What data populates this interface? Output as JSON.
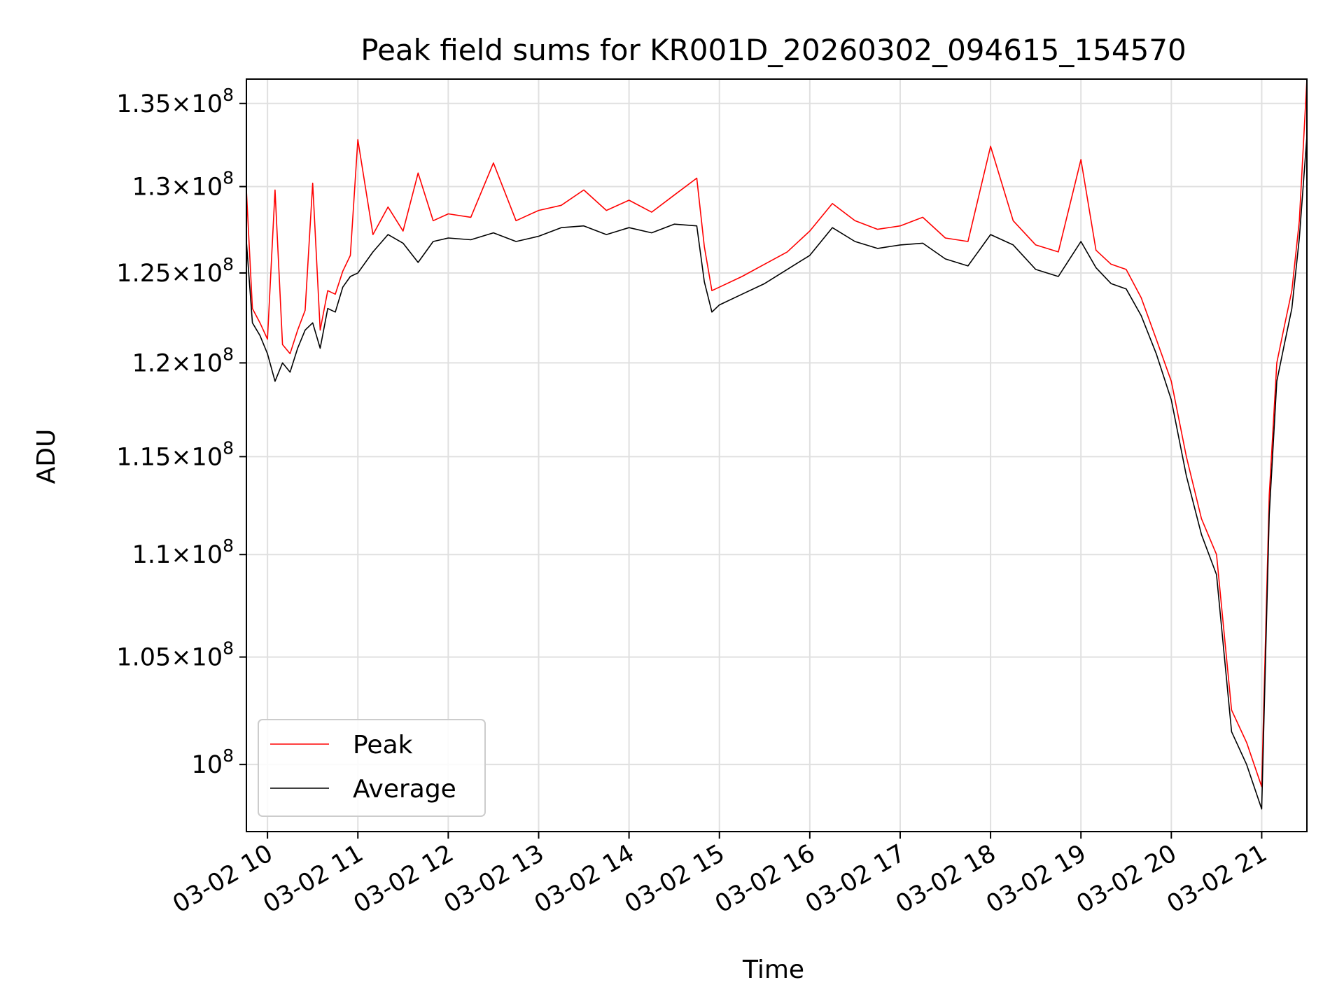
{
  "chart_data": {
    "type": "line",
    "title": "Peak field sums for KR001D_20260302_094615_154570",
    "xlabel": "Time",
    "ylabel": "ADU",
    "yscale": "log",
    "grid": true,
    "legend_placement": "lower-left",
    "xlim": [
      "2026-03-02 09:46",
      "2026-03-02 21:30"
    ],
    "ylim": [
      97000000,
      136500000
    ],
    "x_ticks": [
      "03-02 10",
      "03-02 11",
      "03-02 12",
      "03-02 13",
      "03-02 14",
      "03-02 15",
      "03-02 16",
      "03-02 17",
      "03-02 18",
      "03-02 19",
      "03-02 20",
      "03-02 21"
    ],
    "y_ticks": [
      {
        "value": 100000000,
        "mantissa": "",
        "exp": "8"
      },
      {
        "value": 105000000,
        "mantissa": "1.05",
        "exp": "8"
      },
      {
        "value": 110000000,
        "mantissa": "1.1",
        "exp": "8"
      },
      {
        "value": 115000000,
        "mantissa": "1.15",
        "exp": "8"
      },
      {
        "value": 120000000,
        "mantissa": "1.2",
        "exp": "8"
      },
      {
        "value": 125000000,
        "mantissa": "1.25",
        "exp": "8"
      },
      {
        "value": 130000000,
        "mantissa": "1.3",
        "exp": "8"
      },
      {
        "value": 135000000,
        "mantissa": "1.35",
        "exp": "8"
      }
    ],
    "series": [
      {
        "name": "Peak",
        "color": "#ff0000"
      },
      {
        "name": "Average",
        "color": "#000000"
      }
    ],
    "x": [
      "09:46",
      "09:50",
      "09:55",
      "10:00",
      "10:05",
      "10:10",
      "10:15",
      "10:20",
      "10:25",
      "10:30",
      "10:35",
      "10:40",
      "10:45",
      "10:50",
      "10:55",
      "11:00",
      "11:10",
      "11:20",
      "11:30",
      "11:40",
      "11:50",
      "12:00",
      "12:15",
      "12:30",
      "12:45",
      "13:00",
      "13:15",
      "13:30",
      "13:45",
      "14:00",
      "14:15",
      "14:30",
      "14:45",
      "14:50",
      "14:55",
      "15:00",
      "15:15",
      "15:30",
      "15:45",
      "16:00",
      "16:15",
      "16:30",
      "16:45",
      "17:00",
      "17:15",
      "17:30",
      "17:45",
      "18:00",
      "18:15",
      "18:30",
      "18:45",
      "19:00",
      "19:10",
      "19:20",
      "19:30",
      "19:40",
      "19:50",
      "20:00",
      "20:10",
      "20:20",
      "20:30",
      "20:40",
      "20:50",
      "21:00",
      "21:05",
      "21:10",
      "21:15",
      "21:20",
      "21:25",
      "21:30"
    ],
    "average": [
      126800000,
      122200000,
      121500000,
      120500000,
      119000000,
      120000000,
      119500000,
      120800000,
      121800000,
      122200000,
      120800000,
      123000000,
      122800000,
      124200000,
      124800000,
      125000000,
      126200000,
      127200000,
      126700000,
      125600000,
      126800000,
      127000000,
      126900000,
      127300000,
      126800000,
      127100000,
      127600000,
      127700000,
      127200000,
      127600000,
      127300000,
      127800000,
      127700000,
      124500000,
      122800000,
      123200000,
      123800000,
      124400000,
      125200000,
      126000000,
      127600000,
      126800000,
      126400000,
      126600000,
      126700000,
      125800000,
      125400000,
      127200000,
      126600000,
      125200000,
      124800000,
      126800000,
      125300000,
      124400000,
      124100000,
      122600000,
      120500000,
      118000000,
      114000000,
      111000000,
      109000000,
      101500000,
      100000000,
      98000000,
      112000000,
      119000000,
      121000000,
      123000000,
      127000000,
      133000000
    ],
    "peak": [
      129800000,
      123000000,
      122200000,
      121300000,
      129800000,
      121000000,
      120500000,
      121800000,
      122900000,
      130200000,
      121800000,
      124000000,
      123800000,
      125100000,
      126000000,
      132800000,
      127200000,
      128800000,
      127400000,
      130800000,
      128000000,
      128400000,
      128200000,
      131400000,
      128000000,
      128600000,
      128900000,
      129800000,
      128600000,
      129200000,
      128500000,
      129500000,
      130500000,
      126500000,
      124000000,
      124200000,
      124800000,
      125500000,
      126200000,
      127400000,
      129000000,
      128000000,
      127500000,
      127700000,
      128200000,
      127000000,
      126800000,
      132400000,
      128000000,
      126600000,
      126200000,
      131600000,
      126300000,
      125500000,
      125200000,
      123600000,
      121300000,
      119000000,
      115000000,
      111800000,
      110000000,
      102500000,
      101000000,
      99000000,
      113000000,
      120000000,
      122000000,
      124000000,
      128000000,
      136500000
    ]
  }
}
